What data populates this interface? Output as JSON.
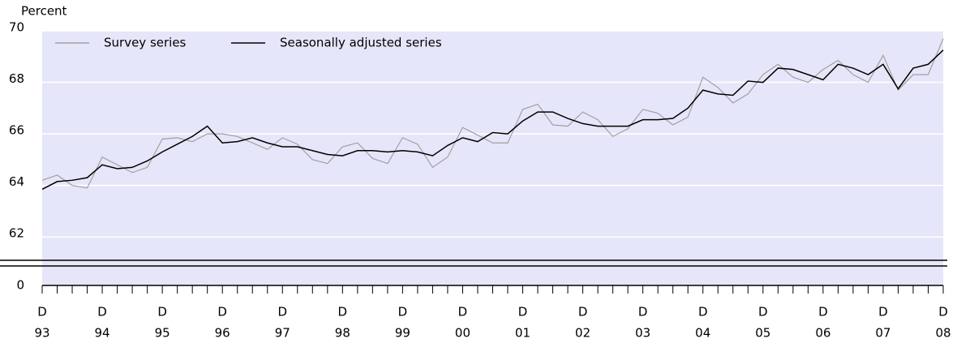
{
  "chart_data": {
    "type": "line",
    "y_label": "Percent",
    "categories": [
      "93",
      null,
      null,
      null,
      "94",
      null,
      null,
      null,
      "95",
      null,
      null,
      null,
      "96",
      null,
      null,
      null,
      "97",
      null,
      null,
      null,
      "98",
      null,
      null,
      null,
      "99",
      null,
      null,
      null,
      "00",
      null,
      null,
      null,
      "01",
      null,
      null,
      null,
      "02",
      null,
      null,
      null,
      "03",
      null,
      null,
      null,
      "04",
      null,
      null,
      null,
      "05",
      null,
      null,
      null,
      "06",
      null,
      null,
      null,
      "07",
      null,
      null,
      null,
      "08"
    ],
    "period_labels": [
      "D",
      null,
      null,
      null,
      "D",
      null,
      null,
      null,
      "D",
      null,
      null,
      null,
      "D",
      null,
      null,
      null,
      "D",
      null,
      null,
      null,
      "D",
      null,
      null,
      null,
      "D",
      null,
      null,
      null,
      "D",
      null,
      null,
      null,
      "D",
      null,
      null,
      null,
      "D",
      null,
      null,
      null,
      "D",
      null,
      null,
      null,
      "D",
      null,
      null,
      null,
      "D",
      null,
      null,
      null,
      "D",
      null,
      null,
      null,
      "D",
      null,
      null,
      null,
      "D"
    ],
    "series": [
      {
        "name": "Survey series",
        "color": "#a0a0a0",
        "values": [
          64.2,
          64.4,
          64.0,
          63.9,
          65.1,
          64.8,
          64.5,
          64.7,
          65.8,
          65.85,
          65.7,
          66.0,
          66.0,
          65.9,
          65.65,
          65.4,
          65.85,
          65.6,
          65.0,
          64.85,
          65.5,
          65.65,
          65.05,
          64.85,
          65.85,
          65.6,
          64.7,
          65.1,
          66.25,
          65.95,
          65.65,
          65.65,
          66.95,
          67.15,
          66.35,
          66.3,
          66.85,
          66.55,
          65.9,
          66.2,
          66.95,
          66.8,
          66.35,
          66.65,
          68.2,
          67.8,
          67.2,
          67.55,
          68.3,
          68.7,
          68.2,
          68.0,
          68.5,
          68.85,
          68.3,
          68.0,
          69.05,
          67.7,
          68.3,
          68.3,
          69.7
        ]
      },
      {
        "name": "Seasonally adjusted series",
        "color": "#000000",
        "values": [
          63.85,
          64.15,
          64.2,
          64.3,
          64.8,
          64.65,
          64.7,
          64.95,
          65.3,
          65.6,
          65.9,
          66.3,
          65.65,
          65.7,
          65.85,
          65.65,
          65.5,
          65.5,
          65.35,
          65.2,
          65.15,
          65.35,
          65.35,
          65.3,
          65.35,
          65.3,
          65.15,
          65.55,
          65.85,
          65.7,
          66.05,
          66.0,
          66.5,
          66.85,
          66.85,
          66.6,
          66.4,
          66.3,
          66.3,
          66.3,
          66.55,
          66.55,
          66.6,
          67.0,
          67.7,
          67.55,
          67.5,
          68.05,
          68.0,
          68.55,
          68.5,
          68.3,
          68.1,
          68.7,
          68.55,
          68.3,
          68.7,
          67.75,
          68.55,
          68.7,
          69.25
        ]
      }
    ],
    "ylim": [
      61,
      70
    ],
    "yticks": [
      62,
      64,
      66,
      68,
      70
    ],
    "axis_break_tick": 0,
    "background": "#e6e6fa",
    "grid": true,
    "legend": "top-left"
  }
}
